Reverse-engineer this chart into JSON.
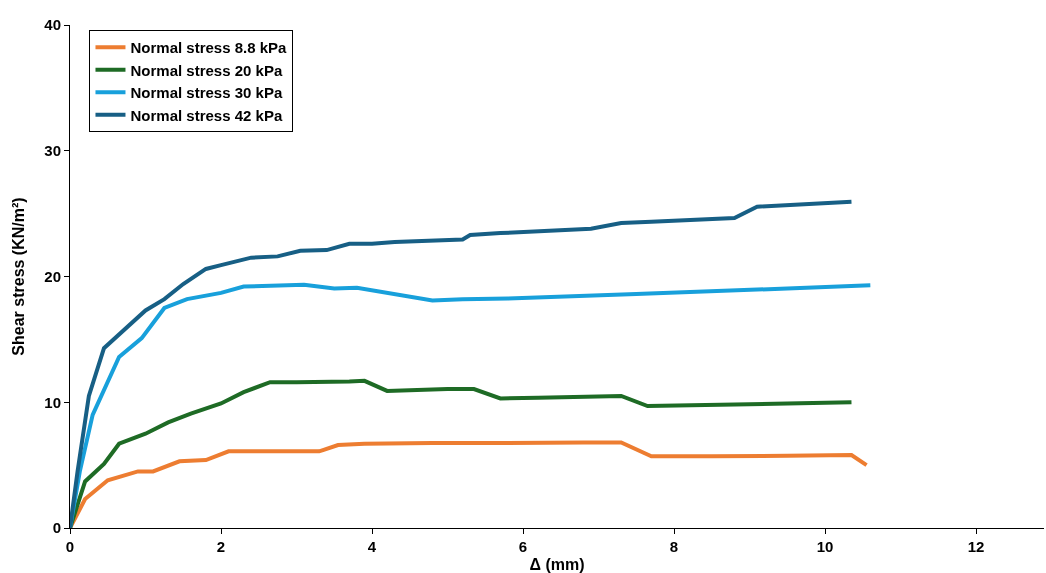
{
  "chart_data": {
    "type": "line",
    "xlabel": "Δ (mm)",
    "ylabel": "Shear stress (KN/m²)",
    "xlim": [
      0,
      12.9
    ],
    "xticks": [
      0,
      2,
      4,
      6,
      8,
      10,
      12
    ],
    "ylim": [
      0,
      40
    ],
    "yticks": [
      0,
      10,
      20,
      30,
      40
    ],
    "legend": "top left",
    "marker": "none",
    "line_style": "solid",
    "series": [
      {
        "name": "Normal stress 8.8 kPa",
        "color": "#ed7d31",
        "x": [
          0,
          0.2,
          0.5,
          0.9,
          1.1,
          1.45,
          1.8,
          2.1,
          3.3,
          3.35,
          3.55,
          3.9,
          4.8,
          5.7,
          6.8,
          7.3,
          7.7,
          8.5,
          9.5,
          10.35,
          10.55
        ],
        "values": [
          0,
          2.3,
          3.8,
          4.5,
          4.5,
          5.3,
          5.4,
          6.1,
          6.1,
          6.2,
          6.6,
          6.7,
          6.75,
          6.75,
          6.8,
          6.8,
          5.7,
          5.7,
          5.75,
          5.8,
          5.0
        ]
      },
      {
        "name": "Normal stress 20 kPa",
        "color": "#1e6b25",
        "x": [
          0,
          0.2,
          0.45,
          0.65,
          1.0,
          1.3,
          1.6,
          2.0,
          2.3,
          2.65,
          3.0,
          3.7,
          3.9,
          4.2,
          5.0,
          5.35,
          5.7,
          6.2,
          7.3,
          7.65,
          9.5,
          10.35
        ],
        "values": [
          0,
          3.7,
          5.1,
          6.7,
          7.5,
          8.4,
          9.1,
          9.9,
          10.8,
          11.6,
          11.6,
          11.65,
          11.7,
          10.9,
          11.05,
          11.05,
          10.3,
          10.35,
          10.5,
          9.7,
          9.9,
          10.0
        ]
      },
      {
        "name": "Normal stress 30 kPa",
        "color": "#18a0db",
        "x": [
          0,
          0.13,
          0.3,
          0.65,
          0.95,
          1.25,
          1.55,
          2.0,
          2.3,
          3.1,
          3.5,
          3.8,
          4.8,
          5.2,
          5.8,
          7.5,
          9.5,
          10.6
        ],
        "values": [
          0,
          4.5,
          9.0,
          13.6,
          15.1,
          17.5,
          18.2,
          18.7,
          19.2,
          19.35,
          19.05,
          19.1,
          18.1,
          18.2,
          18.25,
          18.6,
          19.05,
          19.3
        ]
      },
      {
        "name": "Normal stress 42 kPa",
        "color": "#175f85",
        "x": [
          0,
          0.1,
          0.25,
          0.45,
          1.0,
          1.25,
          1.5,
          1.8,
          2.0,
          2.4,
          2.75,
          3.05,
          3.4,
          3.7,
          4.0,
          4.3,
          5.2,
          5.3,
          5.7,
          6.9,
          7.3,
          7.7,
          8.8,
          9.1,
          10.35
        ],
        "values": [
          0,
          4.5,
          10.5,
          14.3,
          17.3,
          18.2,
          19.4,
          20.6,
          20.9,
          21.5,
          21.6,
          22.05,
          22.1,
          22.6,
          22.6,
          22.75,
          22.95,
          23.3,
          23.45,
          23.8,
          24.25,
          24.35,
          24.65,
          25.55,
          25.95
        ]
      }
    ]
  }
}
